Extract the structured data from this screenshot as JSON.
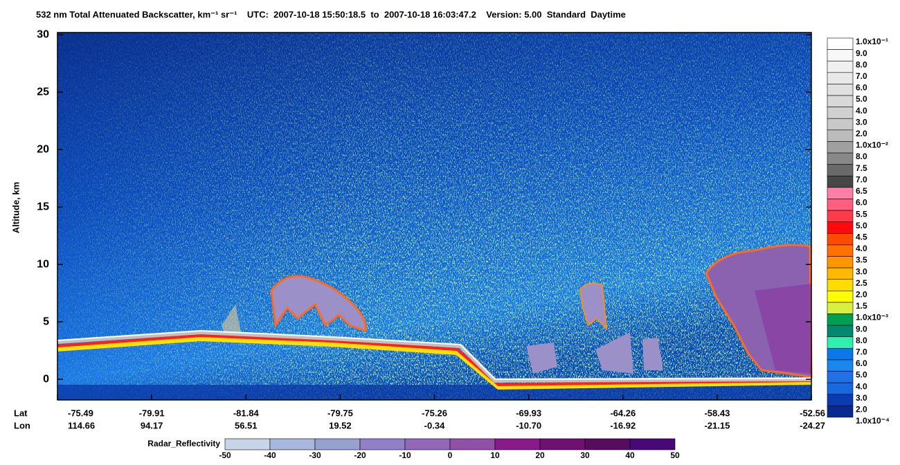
{
  "chart_data": {
    "type": "heatmap",
    "title": "532 nm Total Attenuated Backscatter, km⁻¹ sr⁻¹    UTC:  2007-10-18 15:50:18.5  to  2007-10-18 16:03:47.2    Version: 5.00  Standard  Daytime",
    "y_label": "Altitude, km",
    "ylim": [
      -1.8,
      30.2
    ],
    "yticks": [
      0,
      5,
      10,
      15,
      20,
      25,
      30
    ],
    "lat_label": "Lat",
    "lon_label": "Lon",
    "lat": [
      "-75.49",
      "-79.91",
      "-81.84",
      "-79.75",
      "-75.26",
      "-69.93",
      "-64.26",
      "-58.43",
      "-52.56"
    ],
    "lon": [
      "114.66",
      "94.17",
      "56.51",
      "19.52",
      "-0.34",
      "-10.70",
      "-16.92",
      "-21.15",
      "-24.27"
    ],
    "backscatter_scale": {
      "labels": [
        "1.0x10⁻¹",
        "9.0",
        "8.0",
        "7.0",
        "6.0",
        "5.0",
        "4.0",
        "3.0",
        "2.0",
        "1.0x10⁻²",
        "8.0",
        "7.5",
        "7.0",
        "6.5",
        "6.0",
        "5.5",
        "5.0",
        "4.5",
        "4.0",
        "3.5",
        "3.0",
        "2.5",
        "2.0",
        "1.5",
        "1.0x10⁻³",
        "9.0",
        "8.0",
        "7.0",
        "6.0",
        "5.0",
        "4.0",
        "3.0",
        "2.0",
        "1.0x10⁻⁴"
      ],
      "colors": [
        "#ffffff",
        "#f8f8f8",
        "#f0f0f0",
        "#e8e8e8",
        "#e0e0e0",
        "#d8d8d8",
        "#d0d0d0",
        "#c8c8c8",
        "#bcbcbc",
        "#a0a0a0",
        "#888888",
        "#6a6a6a",
        "#474747",
        "#ff7fa8",
        "#ff5f7f",
        "#ff3a4a",
        "#ff0a0a",
        "#ff4a00",
        "#ff7200",
        "#ff9600",
        "#ffba00",
        "#ffdc00",
        "#ffff00",
        "#d8f040",
        "#00a050",
        "#008870",
        "#30f0b0",
        "#0a78e8",
        "#1a86f0",
        "#2070e8",
        "#1868e0",
        "#0a3cb0",
        "#062a90"
      ]
    },
    "radar_scale": {
      "title": "Radar_Reflectivity",
      "ticks": [
        -50,
        -40,
        -30,
        -20,
        -10,
        0,
        10,
        20,
        30,
        40,
        50
      ],
      "colors": [
        "#c8d4e8",
        "#a8b8dc",
        "#98a0d0",
        "#9080c8",
        "#9468b8",
        "#9050a8",
        "#8a1a8a",
        "#701070",
        "#580c60",
        "#480878"
      ]
    }
  }
}
